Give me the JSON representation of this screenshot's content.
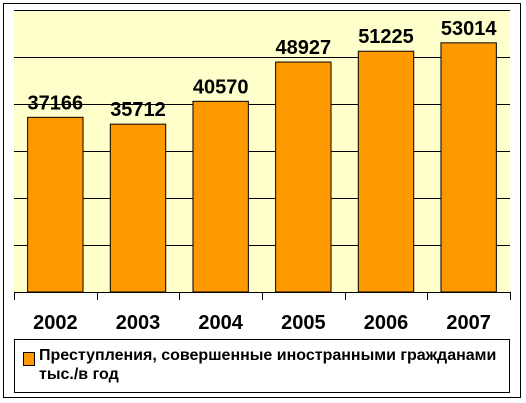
{
  "chart_data": {
    "type": "bar",
    "categories": [
      "2002",
      "2003",
      "2004",
      "2005",
      "2006",
      "2007"
    ],
    "series": [
      {
        "name": "Преступления, совершенные иностранными гражданами тыс./в год",
        "values": [
          37166,
          35712,
          40570,
          48927,
          51225,
          53014
        ],
        "color": "#ff9900"
      }
    ],
    "ylim": [
      0,
      60000
    ],
    "grid": true,
    "legend_position": "bottom",
    "plot_background": "#ffffcc",
    "bar_edge_color": "#000000"
  }
}
